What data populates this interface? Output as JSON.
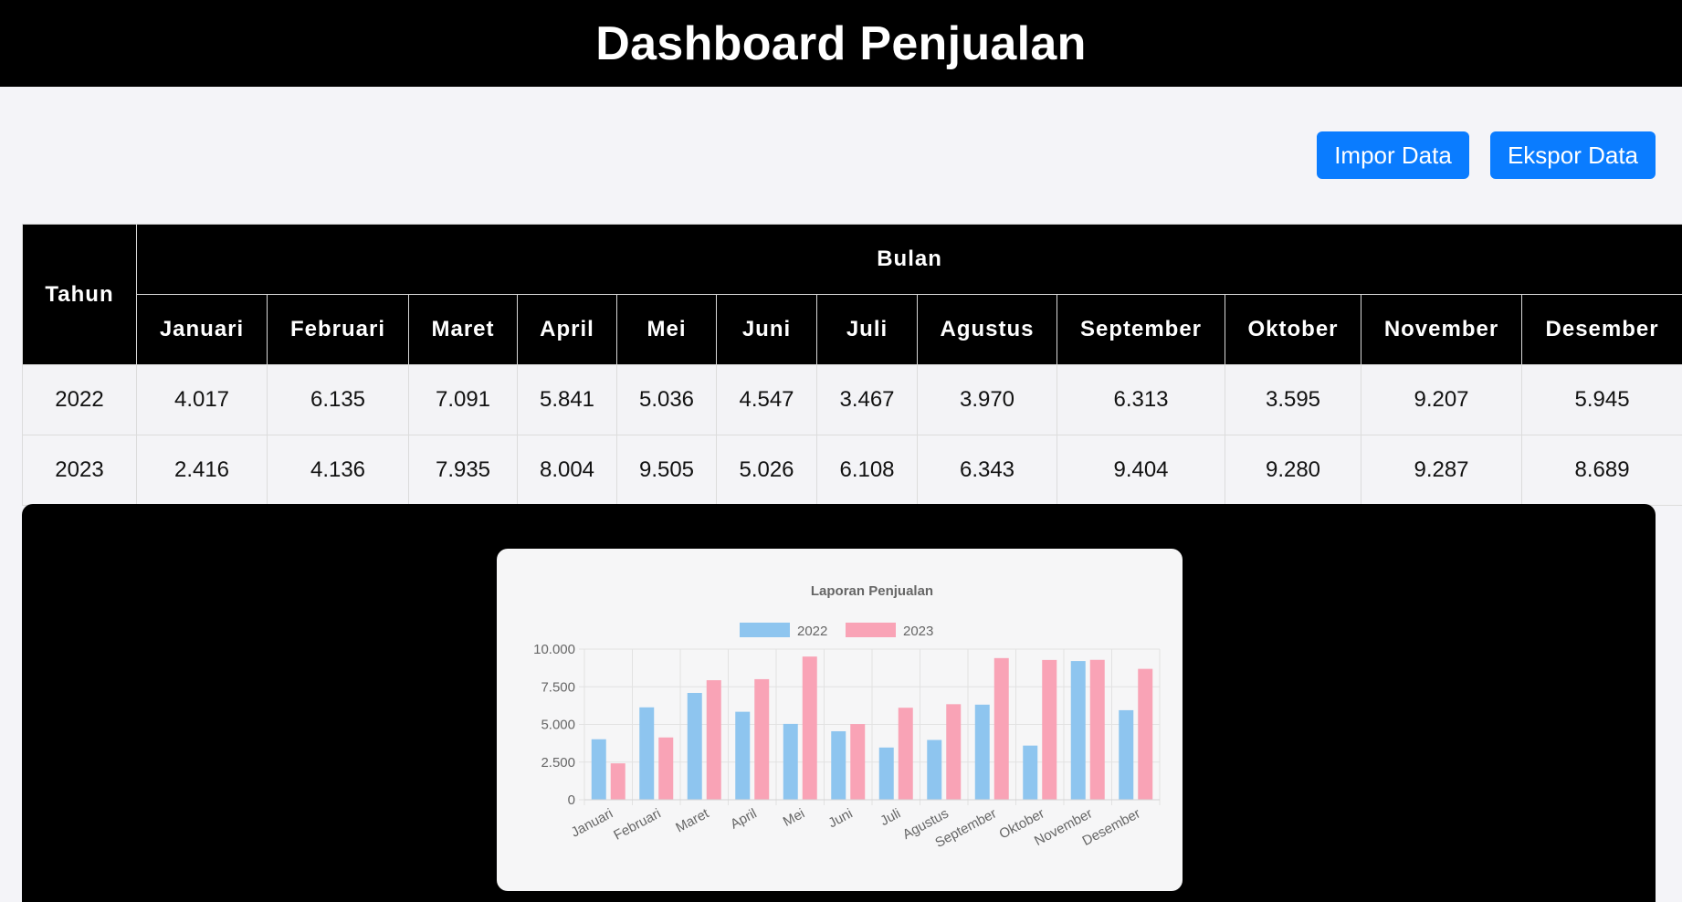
{
  "header": {
    "title": "Dashboard Penjualan"
  },
  "toolbar": {
    "import_label": "Impor Data",
    "export_label": "Ekspor Data"
  },
  "table": {
    "year_header": "Tahun",
    "month_group_header": "Bulan",
    "months": [
      "Januari",
      "Februari",
      "Maret",
      "April",
      "Mei",
      "Juni",
      "Juli",
      "Agustus",
      "September",
      "Oktober",
      "November",
      "Desember"
    ],
    "rows": [
      {
        "year": "2022",
        "values": [
          "4.017",
          "6.135",
          "7.091",
          "5.841",
          "5.036",
          "4.547",
          "3.467",
          "3.970",
          "6.313",
          "3.595",
          "9.207",
          "5.945"
        ]
      },
      {
        "year": "2023",
        "values": [
          "2.416",
          "4.136",
          "7.935",
          "8.004",
          "9.505",
          "5.026",
          "6.108",
          "6.343",
          "9.404",
          "9.280",
          "9.287",
          "8.689"
        ]
      }
    ]
  },
  "chart_data": {
    "type": "bar",
    "title": "Laporan Penjualan",
    "categories": [
      "Januari",
      "Februari",
      "Maret",
      "April",
      "Mei",
      "Juni",
      "Juli",
      "Agustus",
      "September",
      "Oktober",
      "November",
      "Desember"
    ],
    "series": [
      {
        "name": "2022",
        "color": "#8ec5ef",
        "values": [
          4017,
          6135,
          7091,
          5841,
          5036,
          4547,
          3467,
          3970,
          6313,
          3595,
          9207,
          5945
        ]
      },
      {
        "name": "2023",
        "color": "#f9a3b6",
        "values": [
          2416,
          4136,
          7935,
          8004,
          9505,
          5026,
          6108,
          6343,
          9404,
          9280,
          9287,
          8689
        ]
      }
    ],
    "ylim": [
      0,
      10000
    ],
    "yticks": [
      "0",
      "2.500",
      "5.000",
      "7.500",
      "10.000"
    ],
    "xlabel": "",
    "ylabel": "",
    "legend": "top",
    "grid": true
  }
}
